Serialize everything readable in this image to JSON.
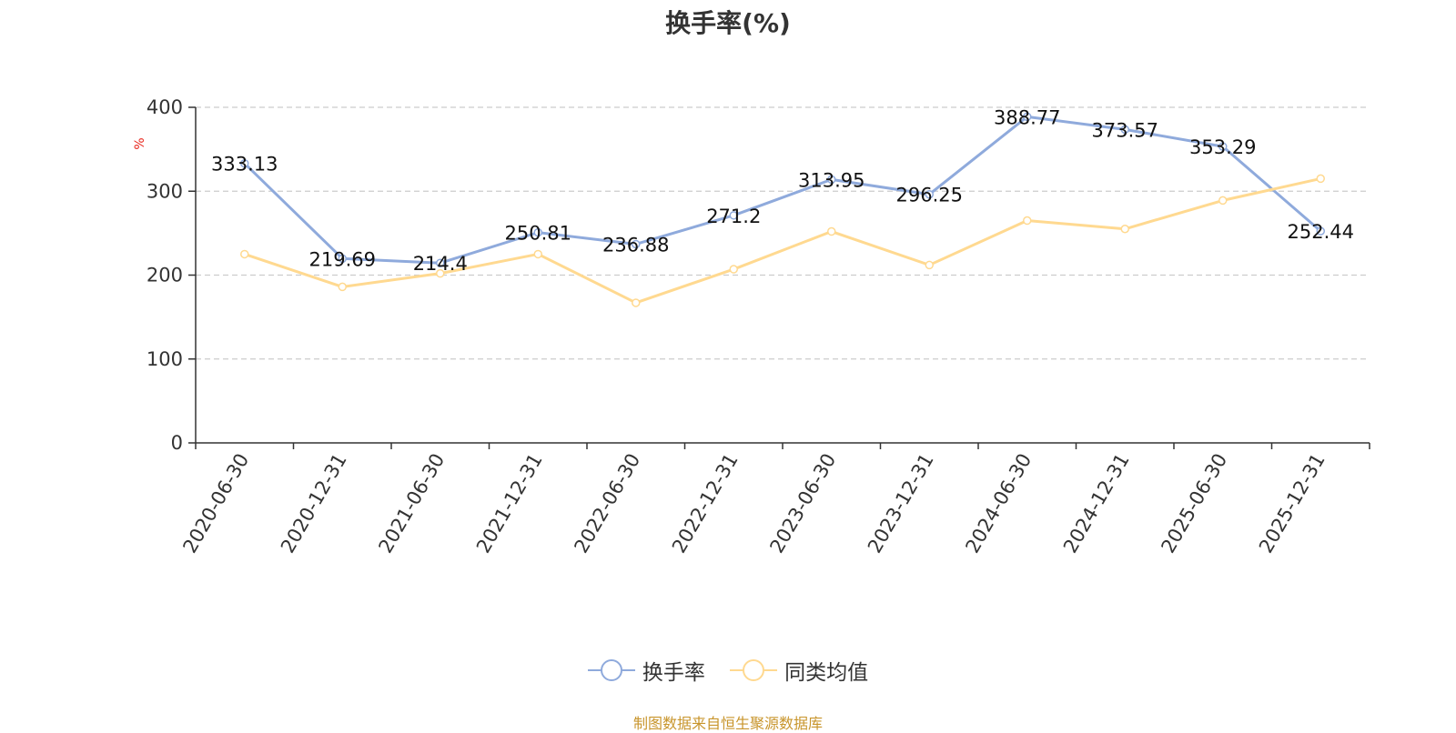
{
  "title": "换手率(%)",
  "source_note": "制图数据来自恒生聚源数据库",
  "colors": {
    "series_1": "#8faadc",
    "series_2": "#ffd990",
    "unit": "#e8261c",
    "axis": "#333333",
    "grid": "#cccccc"
  },
  "chart_data": {
    "type": "line",
    "title": "换手率(%)",
    "xlabel": "",
    "ylabel": "%",
    "ylim": [
      0,
      400
    ],
    "yticks": [
      0,
      100,
      200,
      300,
      400
    ],
    "grid": true,
    "legend_position": "bottom-center",
    "categories": [
      "2020-06-30",
      "2020-12-31",
      "2021-06-30",
      "2021-12-31",
      "2022-06-30",
      "2022-12-31",
      "2023-06-30",
      "2023-12-31",
      "2024-06-30",
      "2024-12-31",
      "2025-06-30",
      "2025-12-31"
    ],
    "series": [
      {
        "name": "换手率",
        "values": [
          333.13,
          219.69,
          214.4,
          250.81,
          236.88,
          271.2,
          313.95,
          296.25,
          388.77,
          373.57,
          353.29,
          252.44
        ],
        "labels": [
          "333.13",
          "219.69",
          "214.4",
          "250.81",
          "236.88",
          "271.2",
          "313.95",
          "296.25",
          "388.77",
          "373.57",
          "353.29",
          "252.44"
        ]
      },
      {
        "name": "同类均值",
        "values": [
          225,
          186,
          202,
          225,
          167,
          207,
          252,
          212,
          265,
          255,
          289,
          315
        ]
      }
    ]
  }
}
